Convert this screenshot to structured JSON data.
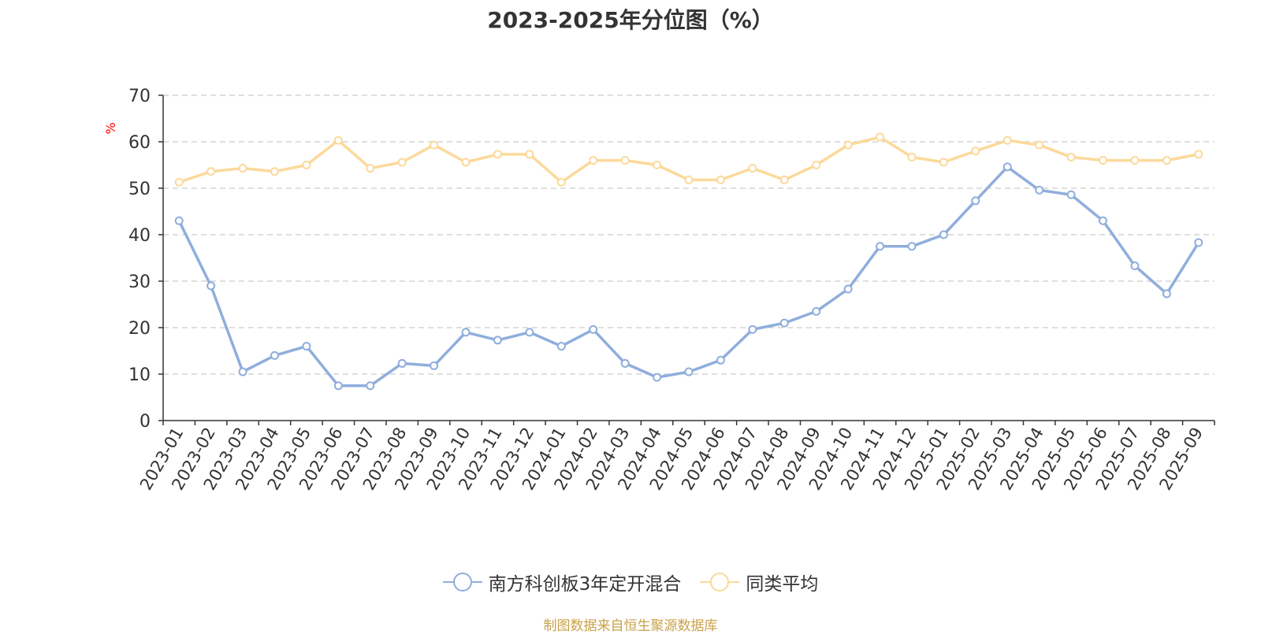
{
  "chart_data": {
    "type": "line",
    "title": "2023-2025年分位图（%）",
    "ylabel": "%",
    "xlabel": "",
    "ylim": [
      0,
      70
    ],
    "yticks": [
      0,
      10,
      20,
      30,
      40,
      50,
      60,
      70
    ],
    "grid": true,
    "legend_position": "bottom",
    "categories": [
      "2023-01",
      "2023-02",
      "2023-03",
      "2023-04",
      "2023-05",
      "2023-06",
      "2023-07",
      "2023-08",
      "2023-09",
      "2023-10",
      "2023-11",
      "2023-12",
      "2024-01",
      "2024-02",
      "2024-03",
      "2024-04",
      "2024-05",
      "2024-06",
      "2024-07",
      "2024-08",
      "2024-09",
      "2024-10",
      "2024-11",
      "2024-12",
      "2025-01",
      "2025-02",
      "2025-03",
      "2025-04",
      "2025-05",
      "2025-06",
      "2025-07",
      "2025-08",
      "2025-09"
    ],
    "series": [
      {
        "name": "南方科创板3年定开混合",
        "color": "#8faedc",
        "values": [
          43,
          29,
          10.5,
          14,
          16,
          7.5,
          7.5,
          12.3,
          11.8,
          19,
          17.3,
          19,
          16,
          19.6,
          12.3,
          9.3,
          10.5,
          13,
          19.6,
          21,
          23.5,
          28.3,
          37.5,
          37.5,
          40,
          47.3,
          54.6,
          49.6,
          48.6,
          43,
          33.3,
          27.3,
          38.3
        ]
      },
      {
        "name": "同类平均",
        "color": "#fcd99a",
        "values": [
          51.3,
          53.6,
          54.3,
          53.6,
          55,
          60.3,
          54.3,
          55.6,
          59.3,
          55.6,
          57.3,
          57.3,
          51.3,
          56,
          56,
          55,
          51.8,
          51.8,
          54.3,
          51.8,
          55,
          59.3,
          61,
          56.7,
          55.6,
          58,
          60.3,
          59.3,
          56.7,
          56,
          56,
          56,
          57.3
        ]
      }
    ]
  },
  "source": {
    "text": "制图数据来自恒生聚源数据库",
    "color": "#c8a24a"
  },
  "axis_label_color": "#ff0000"
}
